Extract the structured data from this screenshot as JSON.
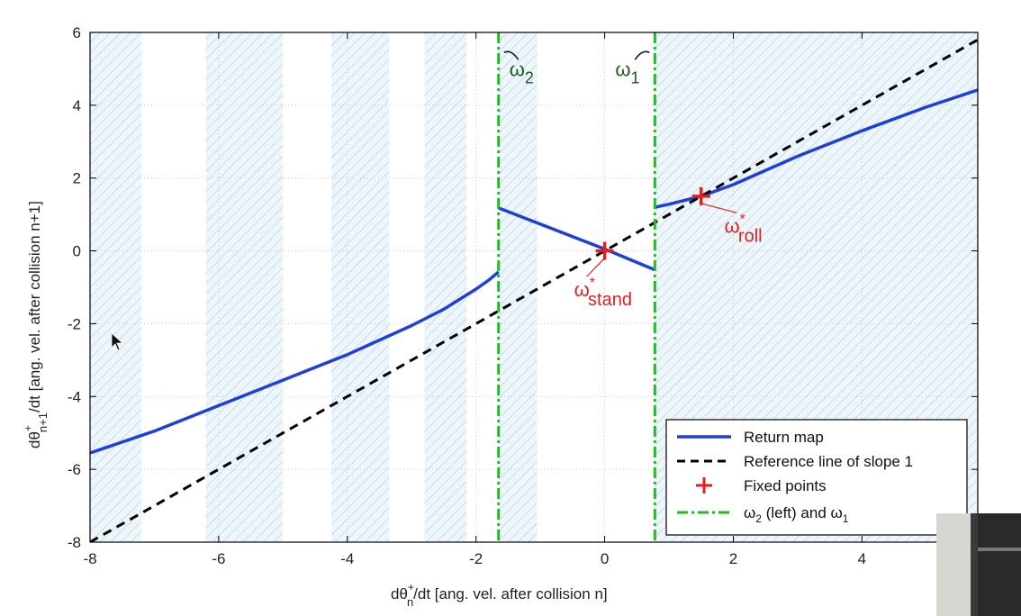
{
  "chart_data": {
    "type": "line",
    "xlim": [
      -8,
      5.8
    ],
    "ylim": [
      -8,
      6
    ],
    "xticks": [
      -8,
      -6,
      -4,
      -2,
      0,
      2,
      4
    ],
    "yticks": [
      -8,
      -6,
      -4,
      -2,
      0,
      2,
      4,
      6
    ],
    "xlabel_main": "dθ",
    "xlabel_sup": "+",
    "xlabel_sub": "n",
    "xlabel_rest": "/dt   [ang. vel. after collision n]",
    "ylabel_main": "dθ",
    "ylabel_sup": "+",
    "ylabel_sub": "n+1",
    "ylabel_rest": "/dt   [ang. vel. after collision n+1]",
    "grid": true,
    "shaded_bands": [
      [
        -8,
        -7.2
      ],
      [
        -6.2,
        -5.0
      ],
      [
        -4.25,
        -3.35
      ],
      [
        -2.8,
        -2.15
      ],
      [
        -1.65,
        -1.05
      ],
      [
        0.78,
        5.8
      ]
    ],
    "series": [
      {
        "name": "Return map",
        "color": "#1f3fd8",
        "style": "solid",
        "segments": [
          [
            [
              -8,
              -5.55
            ],
            [
              -7.0,
              -4.95
            ],
            [
              -6.0,
              -4.25
            ],
            [
              -5.0,
              -3.55
            ],
            [
              -4.0,
              -2.85
            ],
            [
              -3.0,
              -2.05
            ],
            [
              -2.5,
              -1.6
            ],
            [
              -2.0,
              -1.05
            ],
            [
              -1.8,
              -0.8
            ],
            [
              -1.65,
              -0.58
            ]
          ],
          [
            [
              -1.65,
              1.18
            ],
            [
              0,
              0.05
            ],
            [
              0.78,
              -0.52
            ]
          ],
          [
            [
              0.78,
              1.2
            ],
            [
              1.0,
              1.28
            ],
            [
              1.5,
              1.5
            ],
            [
              2.0,
              1.82
            ],
            [
              3.0,
              2.6
            ],
            [
              4.0,
              3.3
            ],
            [
              5.0,
              3.95
            ],
            [
              5.8,
              4.42
            ]
          ]
        ]
      },
      {
        "name": "Reference line of slope 1",
        "color": "#000000",
        "style": "dashed",
        "segments": [
          [
            [
              -8,
              -8
            ],
            [
              5.8,
              5.8
            ]
          ]
        ]
      },
      {
        "name": "Fixed points",
        "color": "#e02020",
        "style": "marker",
        "points": [
          [
            0,
            0
          ],
          [
            1.5,
            1.5
          ]
        ]
      },
      {
        "name": "ω2 (left) and ω1",
        "color": "#22bb22",
        "style": "dashdot",
        "lines_x": [
          -1.65,
          0.78
        ]
      }
    ],
    "legend": {
      "placement": "bottom-right",
      "entries": [
        {
          "label": "Return map",
          "style": "solid",
          "color": "#1f3fd8"
        },
        {
          "label": "Reference line of slope 1",
          "style": "dashed",
          "color": "#000000"
        },
        {
          "label": "Fixed points",
          "style": "marker",
          "color": "#e02020"
        },
        {
          "label_main": "ω",
          "label_sub": "2",
          "label_mid": " (left) and ω",
          "label_sub2": "1",
          "style": "dashdot",
          "color": "#22bb22"
        }
      ]
    },
    "annotations": {
      "omega2": {
        "main": "ω",
        "sub": "2",
        "x": -1.65,
        "y": 5.2,
        "color": "#1a5a1a"
      },
      "omega1": {
        "main": "ω",
        "sub": "1",
        "x": 0.78,
        "y": 5.2,
        "color": "#1a5a1a"
      },
      "stand": {
        "main": "ω",
        "sup": "*",
        "sub": "stand",
        "x": 0,
        "y": -1.25,
        "color": "#e02020"
      },
      "roll": {
        "main": "ω",
        "sup": "*",
        "sub": "roll",
        "x": 2.0,
        "y": 0.5,
        "color": "#e02020"
      }
    }
  }
}
